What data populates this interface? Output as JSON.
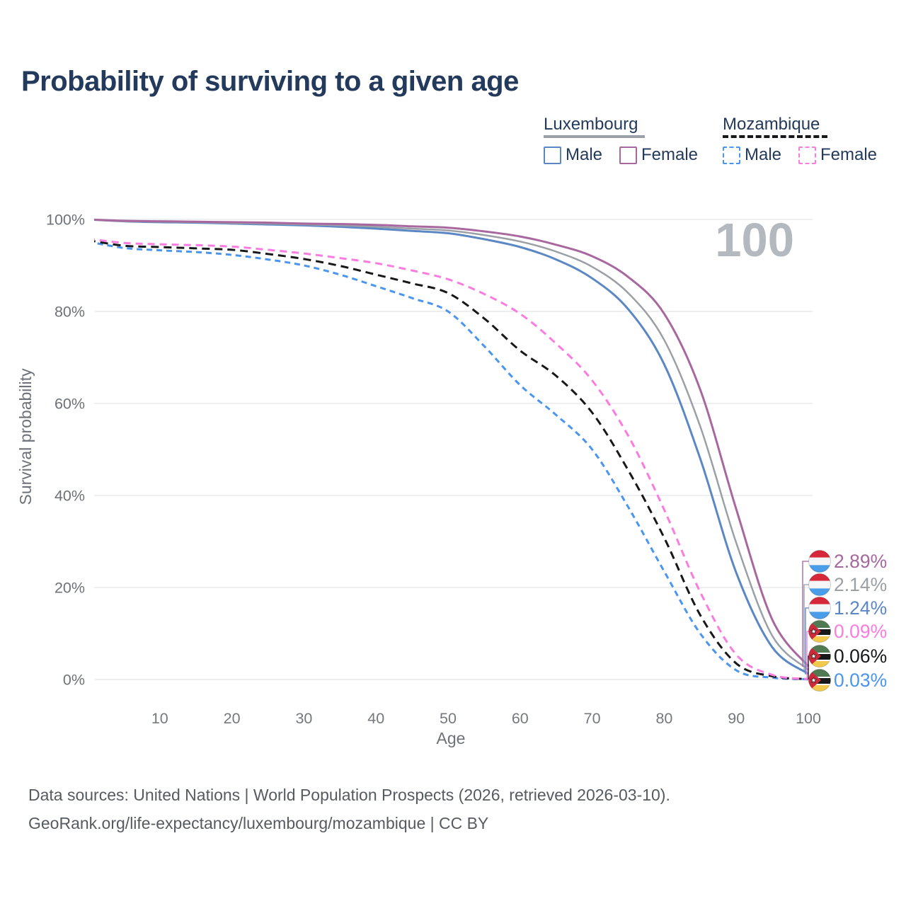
{
  "title": "Probability of surviving to a given age",
  "legend": {
    "groups": [
      {
        "label": "Luxembourg",
        "style": "solid",
        "items": [
          {
            "label": "Male"
          },
          {
            "label": "Female"
          }
        ]
      },
      {
        "label": "Mozambique",
        "style": "dashed",
        "items": [
          {
            "label": "Male"
          },
          {
            "label": "Female"
          }
        ]
      }
    ]
  },
  "chart_data": {
    "type": "line",
    "title": "Probability of surviving to a given age",
    "xlabel": "Age",
    "ylabel": "Survival probability",
    "xlim": [
      0,
      100
    ],
    "ylim": [
      0,
      100
    ],
    "x_ticks": [
      10,
      20,
      30,
      40,
      50,
      60,
      70,
      80,
      90,
      100
    ],
    "y_ticks": [
      0,
      20,
      40,
      60,
      80,
      100
    ],
    "y_tick_suffix": "%",
    "grid": "horizontal",
    "legend_position": "top-right",
    "watermark": "100",
    "ages": [
      0,
      5,
      10,
      15,
      20,
      25,
      30,
      35,
      40,
      45,
      50,
      55,
      60,
      65,
      70,
      75,
      80,
      85,
      90,
      95,
      100
    ],
    "series": [
      {
        "name": "Luxembourg Female",
        "country": "luxembourg",
        "sex": "female",
        "style": "solid",
        "color": "#a8689f",
        "width": 3,
        "values": [
          100,
          99.7,
          99.6,
          99.5,
          99.4,
          99.3,
          99.1,
          99.0,
          98.8,
          98.5,
          98.2,
          97.4,
          96.3,
          94.5,
          92.0,
          87.5,
          79.5,
          63.0,
          37.0,
          13.0,
          2.89
        ]
      },
      {
        "name": "Luxembourg",
        "country": "luxembourg",
        "sex": "both",
        "style": "solid",
        "color": "#9aa0a6",
        "width": 2.5,
        "values": [
          100,
          99.6,
          99.5,
          99.4,
          99.2,
          99.1,
          98.9,
          98.7,
          98.4,
          98.0,
          97.6,
          96.6,
          95.2,
          93.0,
          89.7,
          84.0,
          73.8,
          55.0,
          29.7,
          9.5,
          2.14
        ]
      },
      {
        "name": "Luxembourg Male",
        "country": "luxembourg",
        "sex": "male",
        "style": "solid",
        "color": "#5b87c5",
        "width": 3,
        "values": [
          100,
          99.6,
          99.4,
          99.3,
          99.1,
          98.9,
          98.7,
          98.4,
          98.0,
          97.5,
          97.0,
          95.7,
          94.0,
          91.3,
          87.2,
          80.5,
          68.5,
          48.0,
          23.2,
          7.0,
          1.24
        ]
      },
      {
        "name": "Mozambique Female",
        "country": "mozambique",
        "sex": "female",
        "style": "dashed",
        "color": "#fb7ce0",
        "width": 3,
        "dash": "10 7",
        "values": [
          95.8,
          94.9,
          94.6,
          94.4,
          94.1,
          93.4,
          92.6,
          91.6,
          90.5,
          88.9,
          87.0,
          83.8,
          79.5,
          73.0,
          65.0,
          53.0,
          36.9,
          19.0,
          5.4,
          1.0,
          0.09
        ]
      },
      {
        "name": "Mozambique",
        "country": "mozambique",
        "sex": "both",
        "style": "dashed",
        "color": "#17181a",
        "width": 3,
        "dash": "11 7",
        "values": [
          95.5,
          94.3,
          94.0,
          93.7,
          93.4,
          92.5,
          91.4,
          89.9,
          88.0,
          86.1,
          84.0,
          78.5,
          71.5,
          66.0,
          58.0,
          45.5,
          30.8,
          14.0,
          3.5,
          0.7,
          0.06
        ]
      },
      {
        "name": "Mozambique Male",
        "country": "mozambique",
        "sex": "male",
        "style": "dashed",
        "color": "#4a95ef",
        "width": 3,
        "dash": "8 6",
        "values": [
          95.2,
          93.8,
          93.3,
          92.9,
          92.3,
          91.3,
          90.0,
          88.0,
          85.5,
          82.9,
          80.0,
          72.5,
          64.0,
          57.5,
          50.0,
          37.5,
          23.5,
          10.0,
          2.0,
          0.4,
          0.03
        ]
      }
    ],
    "end_labels": [
      {
        "label": "2.89%",
        "color": "#a4689f",
        "country": "luxembourg",
        "series": "Luxembourg Female",
        "end_value": 2.89
      },
      {
        "label": "2.14%",
        "color": "#9aa0a6",
        "country": "luxembourg",
        "series": "Luxembourg",
        "end_value": 2.14
      },
      {
        "label": "1.24%",
        "color": "#5b87c5",
        "country": "luxembourg",
        "series": "Luxembourg Male",
        "end_value": 1.24
      },
      {
        "label": "0.09%",
        "color": "#fb7ce0",
        "country": "mozambique",
        "series": "Mozambique Female",
        "end_value": 0.09
      },
      {
        "label": "0.06%",
        "color": "#17181a",
        "country": "mozambique",
        "series": "Mozambique",
        "end_value": 0.06
      },
      {
        "label": "0.03%",
        "color": "#4a95ef",
        "country": "mozambique",
        "series": "Mozambique Male",
        "end_value": 0.03
      }
    ],
    "flag_colors": {
      "luxembourg": {
        "red": "#d6283a",
        "white": "#f4f5f7",
        "blue": "#4a9de8"
      },
      "mozambique": {
        "green": "#4f7a52",
        "white": "#ffffff",
        "black": "#17181a",
        "yellow": "#f2c94c",
        "red": "#cf2a3a"
      }
    }
  },
  "footer": {
    "line1": "Data sources: United Nations | World Population Prospects (2026, retrieved 2026-03-10).",
    "line2": "GeoRank.org/life-expectancy/luxembourg/mozambique | CC BY"
  }
}
